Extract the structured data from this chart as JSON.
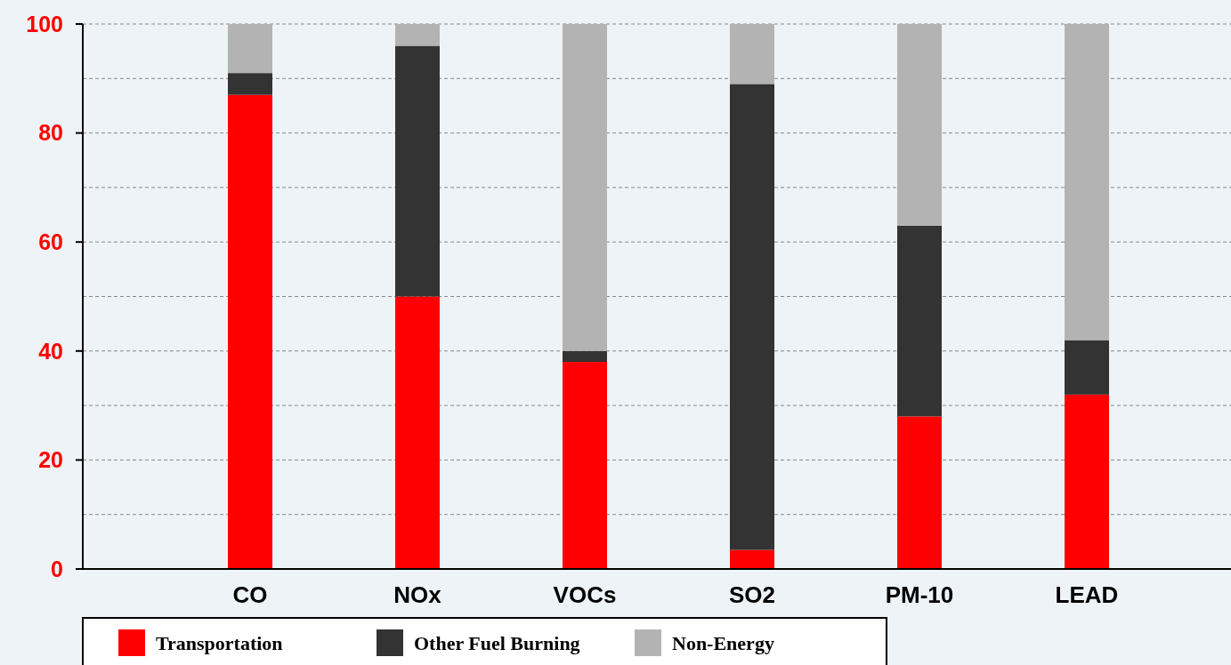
{
  "chart_data": {
    "type": "bar",
    "stacked": true,
    "categories": [
      "CO",
      "NOx",
      "VOCs",
      "SO2",
      "PM-10",
      "LEAD"
    ],
    "series": [
      {
        "name": "Transportation",
        "color": "#ff0000",
        "values": [
          87,
          50,
          38,
          3.5,
          28,
          32
        ]
      },
      {
        "name": "Other Fuel Burning",
        "color": "#333333",
        "values": [
          4,
          46,
          2,
          85.5,
          35,
          10
        ]
      },
      {
        "name": "Non-Energy",
        "color": "#b3b3b3",
        "values": [
          9,
          4,
          60,
          11,
          37,
          58
        ]
      }
    ],
    "ylim": [
      0,
      100
    ],
    "yticks": [
      0,
      {
        "value": 10,
        "label": null
      },
      20,
      {
        "value": 30,
        "label": null
      },
      40,
      {
        "value": 50,
        "label": null
      },
      60,
      {
        "value": 70,
        "label": null
      },
      80,
      {
        "value": 90,
        "label": null
      },
      100
    ],
    "grid": "y",
    "legend": "bottom"
  }
}
